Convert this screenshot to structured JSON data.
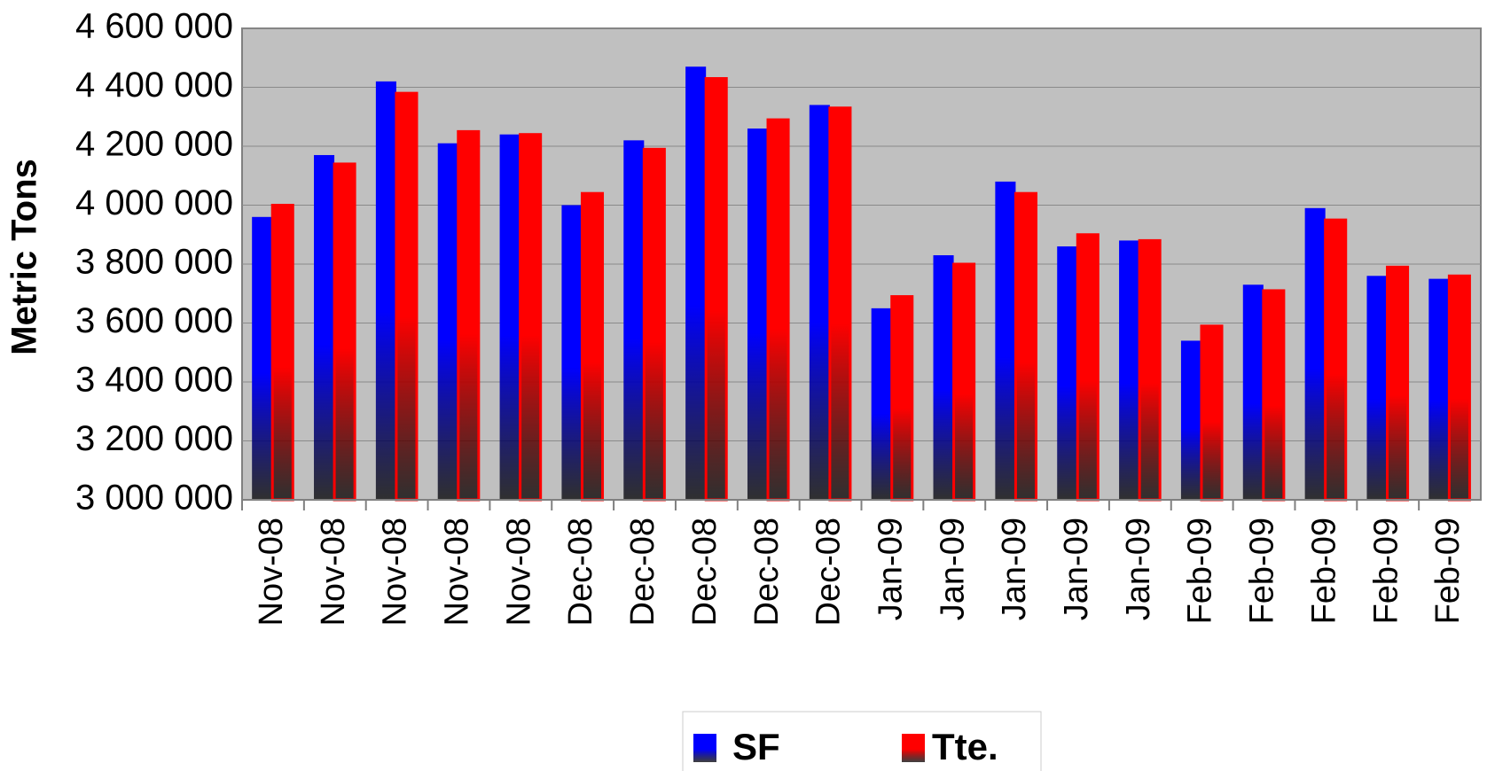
{
  "chart_data": {
    "type": "bar",
    "y_label": "Metric Tons",
    "categories": [
      "Nov-08",
      "Nov-08",
      "Nov-08",
      "Nov-08",
      "Nov-08",
      "Dec-08",
      "Dec-08",
      "Dec-08",
      "Dec-08",
      "Dec-08",
      "Jan-09",
      "Jan-09",
      "Jan-09",
      "Jan-09",
      "Jan-09",
      "Feb-09",
      "Feb-09",
      "Feb-09",
      "Feb-09",
      "Feb-09"
    ],
    "series": [
      {
        "name": "SF",
        "color": "#0000ff",
        "values": [
          3960000,
          4170000,
          4420000,
          4210000,
          4240000,
          4000000,
          4220000,
          4470000,
          4260000,
          4340000,
          3650000,
          3830000,
          4080000,
          3860000,
          3880000,
          3540000,
          3730000,
          3990000,
          3760000,
          3750000
        ]
      },
      {
        "name": "Tte.",
        "color": "#ff0000",
        "values": [
          4000000,
          4140000,
          4380000,
          4250000,
          4240000,
          4040000,
          4190000,
          4430000,
          4290000,
          4330000,
          3690000,
          3800000,
          4040000,
          3900000,
          3880000,
          3590000,
          3710000,
          3950000,
          3790000,
          3760000
        ]
      }
    ],
    "ylim": [
      3000000,
      4600000
    ],
    "yticks": [
      {
        "value": 3000000,
        "label": "3 000 000"
      },
      {
        "value": 3200000,
        "label": "3 200 000"
      },
      {
        "value": 3400000,
        "label": "3 400 000"
      },
      {
        "value": 3600000,
        "label": "3 600 000"
      },
      {
        "value": 3800000,
        "label": "3 800 000"
      },
      {
        "value": 4000000,
        "label": "4 000 000"
      },
      {
        "value": 4200000,
        "label": "4 200 000"
      },
      {
        "value": 4400000,
        "label": "4 400 000"
      },
      {
        "value": 4600000,
        "label": "4 600 000"
      }
    ],
    "grid": true,
    "plot_background": "#c0c0c0",
    "legend": "bottom"
  }
}
